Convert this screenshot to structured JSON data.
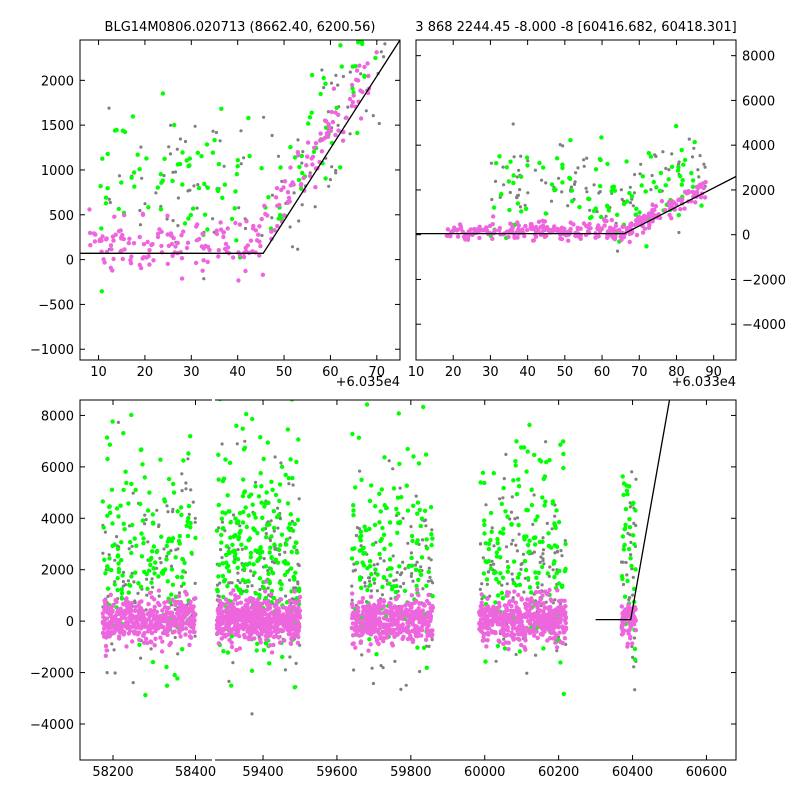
{
  "figure": {
    "background": "#ffffff",
    "colors": {
      "pink": "#ee66dd",
      "green": "#00ff00",
      "gray": "#808080",
      "line": "#000000"
    }
  },
  "chart_data": [
    {
      "type": "scatter",
      "title": "BLG14M0806.020713 (8662.40, 6200.56)",
      "xlabel": "",
      "ylabel": "",
      "x_offset_label": "+6.035e4",
      "xlim": [
        6,
        75
      ],
      "ylim": [
        -1120,
        2450
      ],
      "xticks": [
        "10",
        "20",
        "30",
        "40",
        "50",
        "60",
        "70"
      ],
      "xtick_values": [
        10,
        20,
        30,
        40,
        50,
        60,
        70
      ],
      "yticks": [
        "−1000",
        "−500",
        "0",
        "500",
        "1000",
        "1500",
        "2000"
      ],
      "ytick_values": [
        -1000,
        -500,
        0,
        500,
        1000,
        1500,
        2000
      ],
      "model_line": {
        "x": [
          6,
          45.5,
          75
        ],
        "y": [
          70,
          70,
          2450
        ]
      },
      "series": [
        {
          "color": "pink",
          "count": 230,
          "xrange": [
            8,
            70
          ],
          "baseline": 150,
          "scatter": 250,
          "rise_start": 44,
          "rise_slope": 80
        },
        {
          "color": "green",
          "count": 130,
          "xrange": [
            10,
            72
          ],
          "baseline": 900,
          "scatter": 600,
          "rise_start": 52,
          "rise_slope": 95
        },
        {
          "color": "gray",
          "count": 110,
          "xrange": [
            12,
            72
          ],
          "baseline": 800,
          "scatter": 700,
          "rise_start": 52,
          "rise_slope": 90
        }
      ]
    },
    {
      "type": "scatter",
      "title": "3 868 2244.45 -8.000 -8 [60416.682, 60418.301]",
      "xlabel": "",
      "ylabel": "",
      "x_offset_label": "+6.033e4",
      "xlim": [
        10,
        96
      ],
      "ylim": [
        -5600,
        8700
      ],
      "xticks": [
        "10",
        "20",
        "30",
        "40",
        "50",
        "60",
        "70",
        "80",
        "90"
      ],
      "xtick_values": [
        10,
        20,
        30,
        40,
        50,
        60,
        70,
        80,
        90
      ],
      "yticks": [
        "−4000",
        "−2000",
        "0",
        "2000",
        "4000",
        "6000",
        "8000"
      ],
      "ytick_values": [
        -4000,
        -2000,
        0,
        2000,
        4000,
        6000,
        8000
      ],
      "model_line": {
        "x": [
          10,
          66,
          96
        ],
        "y": [
          50,
          50,
          2600
        ]
      },
      "series": [
        {
          "color": "pink",
          "count": 320,
          "xrange": [
            18,
            88
          ],
          "baseline": 150,
          "scatter": 350,
          "rise_start": 66,
          "rise_slope": 90
        },
        {
          "color": "green",
          "count": 110,
          "xrange": [
            30,
            88
          ],
          "baseline": 1800,
          "scatter": 1700,
          "rise_start": 70,
          "rise_slope": 60
        },
        {
          "color": "gray",
          "count": 100,
          "xrange": [
            30,
            88
          ],
          "baseline": 2000,
          "scatter": 1600,
          "rise_start": 70,
          "rise_slope": 60
        }
      ]
    },
    {
      "type": "scatter",
      "title": "",
      "xlabel": "",
      "ylabel": "",
      "xlim": [
        58120,
        60680
      ],
      "ylim": [
        -5400,
        8600
      ],
      "gap_x": [
        58440,
        59270
      ],
      "xticks": [
        "58200",
        "58400",
        "59400",
        "59600",
        "59800",
        "60000",
        "60200",
        "60400",
        "60600"
      ],
      "xtick_values": [
        58200,
        58400,
        59400,
        59600,
        59800,
        60000,
        60200,
        60400,
        60600
      ],
      "yticks": [
        "−4000",
        "−2000",
        "0",
        "2000",
        "4000",
        "6000",
        "8000"
      ],
      "ytick_values": [
        -4000,
        -2000,
        0,
        2000,
        4000,
        6000,
        8000
      ],
      "model_line": {
        "x": [
          60300,
          60395,
          60500
        ],
        "y": [
          60,
          60,
          8600
        ]
      },
      "seasons": [
        {
          "range": [
            58175,
            58400
          ],
          "pink": 450,
          "green": 170,
          "gray": 120
        },
        {
          "range": [
            59275,
            59500
          ],
          "pink": 520,
          "green": 260,
          "gray": 150
        },
        {
          "range": [
            59640,
            59860
          ],
          "pink": 420,
          "green": 150,
          "gray": 120
        },
        {
          "range": [
            59985,
            60220
          ],
          "pink": 480,
          "green": 170,
          "gray": 130
        },
        {
          "range": [
            60370,
            60410
          ],
          "pink": 70,
          "green": 40,
          "gray": 30
        }
      ]
    }
  ]
}
